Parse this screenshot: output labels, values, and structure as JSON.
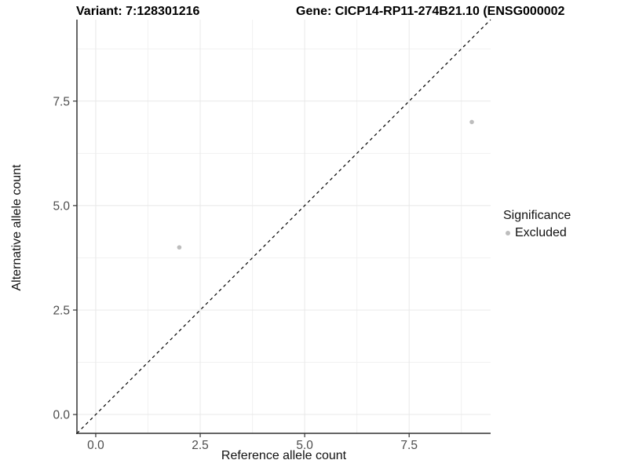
{
  "chart_data": {
    "type": "scatter",
    "titles": {
      "left": "Variant: 7:128301216",
      "right": "Gene: CICP14-RP11-274B21.10 (ENSG000002"
    },
    "xlabel": "Reference allele count",
    "ylabel": "Alternative allele count",
    "xlim": [
      -0.45,
      9.45
    ],
    "ylim": [
      -0.45,
      9.45
    ],
    "x_ticks": [
      0.0,
      2.5,
      5.0,
      7.5
    ],
    "y_ticks": [
      0.0,
      2.5,
      5.0,
      7.5
    ],
    "x_tick_labels": [
      "0.0",
      "2.5",
      "5.0",
      "7.5"
    ],
    "y_tick_labels": [
      "0.0",
      "2.5",
      "5.0",
      "7.5"
    ],
    "x_minor_ticks": [
      1.25,
      3.75,
      6.25,
      8.75
    ],
    "y_minor_ticks": [
      1.25,
      3.75,
      6.25,
      8.75
    ],
    "grid": true,
    "series": [
      {
        "name": "Excluded",
        "color": "#bdbdbd",
        "points": [
          {
            "x": 2,
            "y": 4
          },
          {
            "x": 9,
            "y": 7
          }
        ]
      }
    ],
    "reference_line": {
      "type": "identity",
      "style": "dashed",
      "from": [
        -0.45,
        -0.45
      ],
      "to": [
        9.45,
        9.45
      ],
      "color": "#000000"
    },
    "legend": {
      "title": "Significance",
      "position": "right",
      "items": [
        {
          "label": "Excluded",
          "color": "#bdbdbd"
        }
      ]
    },
    "colors": {
      "grid_major": "#e8e8e8",
      "grid_minor": "#f1f1f1",
      "axis_line": "#333333",
      "tick_mark": "#333333",
      "tick_label": "#4d4d4d"
    }
  }
}
